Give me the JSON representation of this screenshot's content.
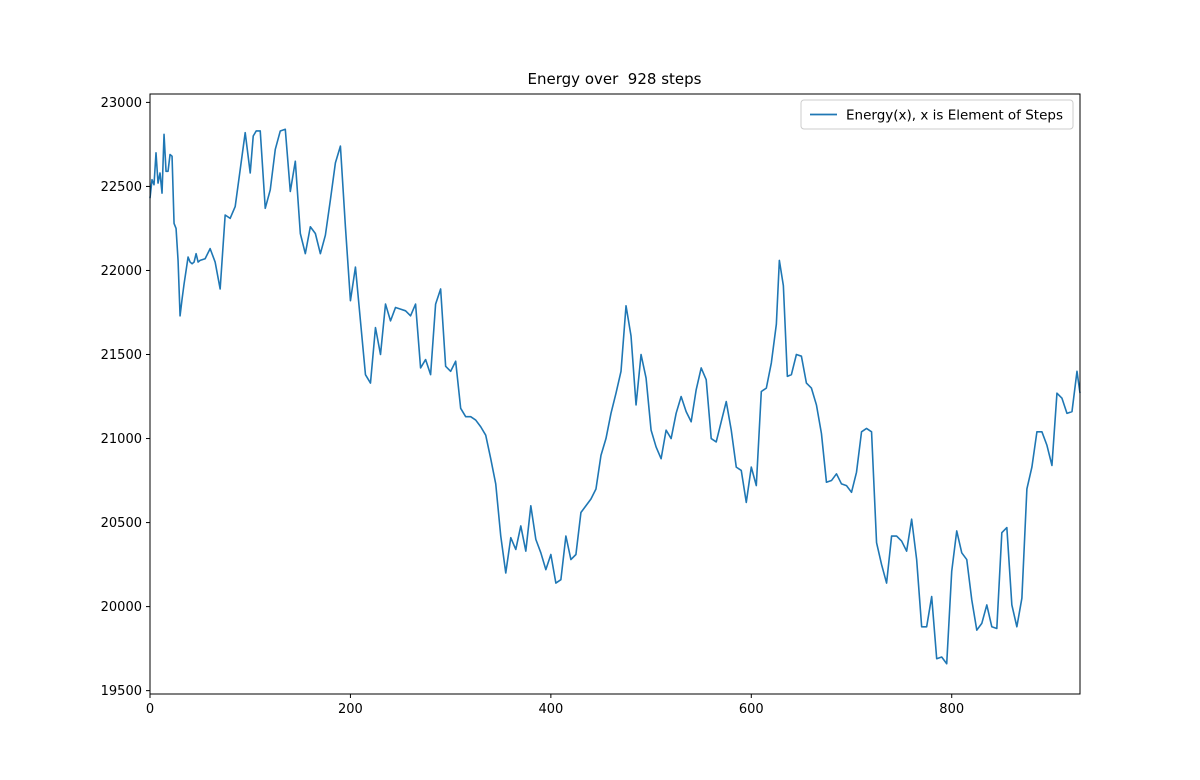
{
  "chart_data": {
    "type": "line",
    "title": "Energy over  928 steps",
    "xlabel": "",
    "ylabel": "",
    "xlim": [
      0,
      928
    ],
    "ylim": [
      19480,
      23050
    ],
    "xticks": [
      0,
      200,
      400,
      600,
      800
    ],
    "yticks": [
      19500,
      20000,
      20500,
      21000,
      21500,
      22000,
      22500,
      23000
    ],
    "grid": false,
    "legend_position": "top-right",
    "colors": {
      "line": "#1f77b4",
      "axes": "#000000"
    },
    "series": [
      {
        "name": "Energy(x), x is Element of Steps",
        "x": [
          0,
          2,
          4,
          6,
          8,
          10,
          12,
          14,
          16,
          18,
          20,
          22,
          24,
          26,
          28,
          30,
          32,
          34,
          36,
          38,
          40,
          42,
          44,
          46,
          48,
          50,
          55,
          60,
          65,
          70,
          75,
          80,
          85,
          90,
          95,
          100,
          103,
          106,
          110,
          115,
          120,
          125,
          130,
          135,
          140,
          145,
          150,
          155,
          160,
          165,
          170,
          175,
          180,
          185,
          190,
          195,
          200,
          205,
          210,
          215,
          220,
          225,
          230,
          235,
          240,
          245,
          250,
          255,
          260,
          265,
          270,
          275,
          280,
          285,
          290,
          295,
          300,
          305,
          310,
          315,
          320,
          325,
          330,
          335,
          340,
          345,
          350,
          355,
          360,
          365,
          370,
          375,
          380,
          385,
          390,
          395,
          400,
          405,
          410,
          415,
          420,
          425,
          430,
          435,
          440,
          445,
          450,
          455,
          460,
          465,
          470,
          475,
          480,
          485,
          490,
          495,
          500,
          505,
          510,
          515,
          520,
          525,
          530,
          535,
          540,
          545,
          550,
          555,
          560,
          565,
          570,
          575,
          580,
          585,
          590,
          595,
          600,
          605,
          610,
          615,
          620,
          625,
          628,
          632,
          636,
          640,
          645,
          650,
          655,
          660,
          665,
          670,
          675,
          680,
          685,
          690,
          695,
          700,
          705,
          710,
          715,
          720,
          725,
          730,
          735,
          740,
          745,
          750,
          755,
          760,
          765,
          770,
          775,
          780,
          785,
          790,
          795,
          800,
          805,
          810,
          815,
          820,
          825,
          830,
          835,
          840,
          845,
          850,
          855,
          860,
          865,
          870,
          875,
          880,
          885,
          890,
          895,
          900,
          905,
          910,
          915,
          920,
          925,
          928
        ],
        "values": [
          22430,
          22540,
          22510,
          22700,
          22520,
          22580,
          22460,
          22810,
          22590,
          22590,
          22690,
          22680,
          22280,
          22250,
          22060,
          21730,
          21830,
          21920,
          22000,
          22080,
          22050,
          22040,
          22050,
          22100,
          22050,
          22060,
          22070,
          22130,
          22050,
          21890,
          22330,
          22310,
          22380,
          22600,
          22820,
          22580,
          22800,
          22830,
          22830,
          22370,
          22480,
          22720,
          22830,
          22840,
          22470,
          22650,
          22220,
          22100,
          22260,
          22220,
          22100,
          22210,
          22420,
          22640,
          22740,
          22260,
          21820,
          22020,
          21700,
          21380,
          21330,
          21660,
          21500,
          21800,
          21700,
          21780,
          21770,
          21760,
          21730,
          21800,
          21420,
          21470,
          21380,
          21800,
          21890,
          21430,
          21400,
          21460,
          21180,
          21130,
          21130,
          21110,
          21070,
          21020,
          20880,
          20730,
          20420,
          20200,
          20410,
          20340,
          20480,
          20330,
          20600,
          20400,
          20320,
          20220,
          20310,
          20140,
          20160,
          20420,
          20280,
          20310,
          20560,
          20600,
          20640,
          20700,
          20900,
          21000,
          21150,
          21270,
          21400,
          21790,
          21610,
          21200,
          21500,
          21360,
          21050,
          20950,
          20880,
          21050,
          21000,
          21150,
          21250,
          21160,
          21100,
          21290,
          21420,
          21350,
          21000,
          20980,
          21100,
          21220,
          21050,
          20830,
          20810,
          20620,
          20830,
          20720,
          21280,
          21300,
          21450,
          21680,
          22060,
          21910,
          21370,
          21380,
          21500,
          21490,
          21330,
          21300,
          21200,
          21030,
          20740,
          20750,
          20790,
          20730,
          20720,
          20680,
          20800,
          21040,
          21060,
          21040,
          20380,
          20250,
          20140,
          20420,
          20420,
          20390,
          20330,
          20520,
          20280,
          19880,
          19880,
          20060,
          19690,
          19700,
          19660,
          20210,
          20450,
          20320,
          20280,
          20040,
          19860,
          19900,
          20010,
          19880,
          19870,
          20440,
          20470,
          20010,
          19880,
          20050,
          20700,
          20830,
          21040,
          21040,
          20960,
          20840,
          21270,
          21240,
          21150,
          21160,
          21400,
          21270
        ]
      }
    ]
  }
}
